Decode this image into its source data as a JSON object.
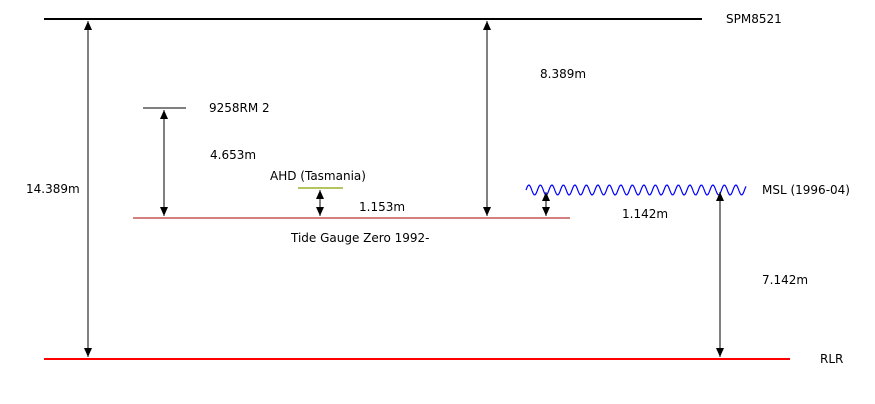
{
  "levels": {
    "spm": {
      "label": "SPM8521"
    },
    "rm2": {
      "label": "9258RM 2"
    },
    "ahd": {
      "label": "AHD (Tasmania)"
    },
    "tide_gauge_zero": {
      "label": "Tide Gauge Zero 1992-"
    },
    "msl": {
      "label": "MSL (1996-04)"
    },
    "rlr": {
      "label": "RLR"
    }
  },
  "measurements": {
    "spm_to_rlr": "14.389m",
    "rm2_to_tgz": "4.653m",
    "ahd_to_tgz": "1.153m",
    "spm_to_tgz": "8.389m",
    "msl_to_tgz": "1.142m",
    "msl_to_rlr": "7.142m"
  },
  "colors": {
    "spm_line": "#000000",
    "rm2_line": "#000000",
    "ahd_line": "#8aa000",
    "tide_gauge_zero_line": "#aa0000",
    "msl_wave": "#0000ff",
    "rlr_line": "#ff0000",
    "arrows": "#000000"
  }
}
